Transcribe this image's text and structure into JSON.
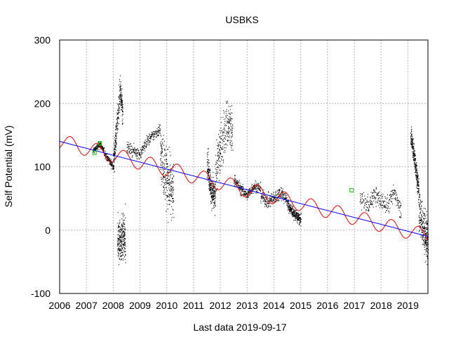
{
  "chart_data": {
    "type": "scatter",
    "title": "USBKS",
    "xlabel": "Last data 2019-09-17",
    "ylabel": "Self Potential (mV)",
    "xlim": [
      2006,
      2019.75
    ],
    "ylim": [
      -100,
      300
    ],
    "xticks": [
      2006,
      2007,
      2008,
      2009,
      2010,
      2011,
      2012,
      2013,
      2014,
      2015,
      2016,
      2017,
      2018,
      2019
    ],
    "yticks": [
      -100,
      0,
      100,
      200,
      300
    ],
    "grid": true,
    "colors": {
      "data": "#000000",
      "trend": "#0000ff",
      "seasonal": "#ff0000",
      "manual": "#00cc00",
      "grid": "#b4b4b4"
    },
    "data_segments": [
      {
        "x": [
          2007.25,
          2007.5,
          2007.75,
          2008.0
        ],
        "y": [
          125,
          135,
          115,
          100
        ],
        "spread": 10
      },
      {
        "x": [
          2008.0,
          2008.1,
          2008.25,
          2008.35
        ],
        "y": [
          105,
          150,
          220,
          180
        ],
        "spread": 40
      },
      {
        "x": [
          2008.15,
          2008.45
        ],
        "y": [
          -20,
          -10
        ],
        "spread": 60
      },
      {
        "x": [
          2008.5,
          2008.75,
          2009.0,
          2009.25,
          2009.5,
          2009.75
        ],
        "y": [
          130,
          125,
          120,
          140,
          150,
          160
        ],
        "spread": 15
      },
      {
        "x": [
          2009.75,
          2010.0,
          2010.25
        ],
        "y": [
          120,
          80,
          60
        ],
        "spread": 80
      },
      {
        "x": [
          2011.5,
          2011.65,
          2011.8
        ],
        "y": [
          110,
          60,
          50
        ],
        "spread": 40
      },
      {
        "x": [
          2011.8,
          2012.0,
          2012.25,
          2012.45
        ],
        "y": [
          90,
          130,
          170,
          150
        ],
        "spread": 70
      },
      {
        "x": [
          2012.5,
          2012.75,
          2013.0,
          2013.25,
          2013.5
        ],
        "y": [
          80,
          65,
          55,
          70,
          65
        ],
        "spread": 15
      },
      {
        "x": [
          2013.5,
          2013.75,
          2014.0,
          2014.25,
          2014.5
        ],
        "y": [
          55,
          45,
          50,
          60,
          45
        ],
        "spread": 18
      },
      {
        "x": [
          2014.5,
          2014.75,
          2015.0
        ],
        "y": [
          40,
          25,
          15
        ],
        "spread": 15
      },
      {
        "x": [
          2017.2,
          2017.5,
          2017.75,
          2018.0,
          2018.25,
          2018.5,
          2018.75
        ],
        "y": [
          50,
          40,
          55,
          45,
          40,
          60,
          30
        ],
        "spread": 25
      },
      {
        "x": [
          2019.1,
          2019.25,
          2019.4
        ],
        "y": [
          150,
          110,
          60
        ],
        "spread": 30
      },
      {
        "x": [
          2019.4,
          2019.6,
          2019.75
        ],
        "y": [
          30,
          0,
          -20
        ],
        "spread": 60
      }
    ],
    "trend_line": {
      "x": [
        2006,
        2019.75
      ],
      "y": [
        140,
        -10
      ]
    },
    "seasonal_fit": {
      "amplitude": 12,
      "period_years": 1.0
    },
    "manual_points": [
      {
        "x": 2007.3,
        "y": 122
      },
      {
        "x": 2007.5,
        "y": 137
      },
      {
        "x": 2016.9,
        "y": 63
      }
    ]
  }
}
